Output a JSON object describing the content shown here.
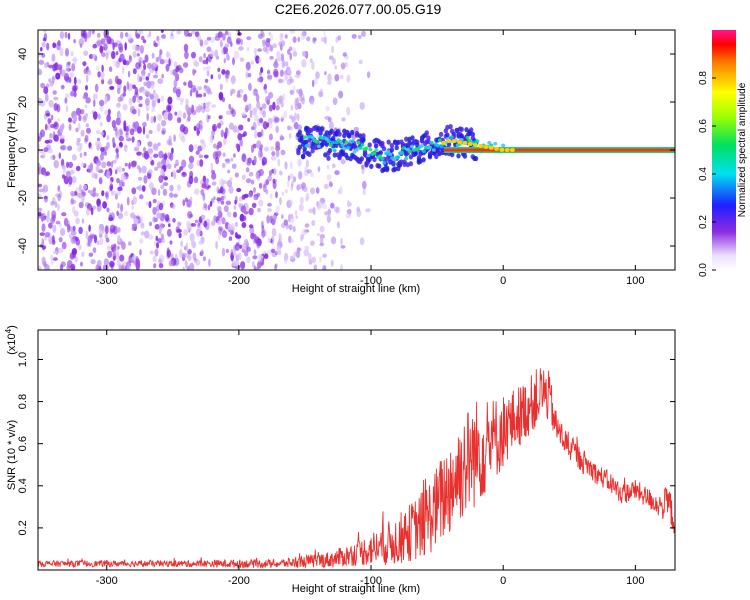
{
  "title": "C2E6.2026.077.00.05.G19",
  "chart_data": [
    {
      "type": "heatmap",
      "name": "spectrogram",
      "xlabel": "Height of straight line (km)",
      "ylabel": "Frequency (Hz)",
      "xlim": [
        -352,
        130
      ],
      "ylim": [
        -50,
        50
      ],
      "xticks": [
        -300,
        -200,
        -100,
        0,
        100
      ],
      "yticks": [
        -40,
        -20,
        0,
        20,
        40
      ],
      "colorbar": {
        "label": "Normalized spectral amplitude",
        "range": [
          0.0,
          1.0
        ],
        "ticks": [
          0.0,
          0.2,
          0.4,
          0.6,
          0.8
        ]
      },
      "signal_track": {
        "x": [
          -150,
          -140,
          -130,
          -120,
          -110,
          -100,
          -90,
          -80,
          -70,
          -60,
          -50,
          -40,
          -30,
          -20,
          -10,
          0,
          10,
          30,
          60,
          90,
          120,
          130
        ],
        "frequency": [
          3,
          4,
          2,
          3,
          1,
          -1,
          -3,
          -2,
          -1,
          1,
          2,
          4,
          3,
          2,
          1,
          0,
          0,
          0,
          0,
          0,
          0,
          0
        ],
        "amplitude": [
          0.2,
          0.3,
          0.35,
          0.4,
          0.45,
          0.45,
          0.4,
          0.5,
          0.55,
          0.5,
          0.45,
          0.55,
          0.7,
          0.75,
          0.8,
          0.85,
          0.9,
          0.9,
          0.9,
          0.9,
          0.9,
          0.9
        ]
      },
      "noise_extent": {
        "dense_below": -170,
        "fades_until": -100
      }
    },
    {
      "type": "line",
      "name": "snr",
      "xlabel": "Height of straight line (km)",
      "ylabel": "SNR (10 * v/v)",
      "y_multiplier": "(x10",
      "y_multiplier_exponent": "4",
      "y_multiplier_close": ")",
      "xlim": [
        -352,
        130
      ],
      "ylim": [
        0.0,
        1.14
      ],
      "xticks": [
        -300,
        -200,
        -100,
        0,
        100
      ],
      "yticks": [
        0.2,
        0.4,
        0.6,
        0.8,
        1.0
      ],
      "color": "#e8302e",
      "envelope": {
        "x": [
          -352,
          -300,
          -250,
          -200,
          -170,
          -150,
          -130,
          -110,
          -100,
          -90,
          -80,
          -70,
          -60,
          -50,
          -40,
          -30,
          -20,
          -10,
          0,
          10,
          20,
          30,
          35,
          40,
          50,
          60,
          70,
          80,
          90,
          100,
          110,
          120,
          125,
          130
        ],
        "mean": [
          0.03,
          0.03,
          0.03,
          0.03,
          0.03,
          0.04,
          0.05,
          0.08,
          0.1,
          0.12,
          0.14,
          0.18,
          0.22,
          0.3,
          0.4,
          0.5,
          0.56,
          0.6,
          0.66,
          0.72,
          0.78,
          0.85,
          0.82,
          0.68,
          0.58,
          0.52,
          0.46,
          0.42,
          0.36,
          0.38,
          0.34,
          0.3,
          0.32,
          0.22
        ],
        "spread": [
          0.015,
          0.015,
          0.015,
          0.02,
          0.02,
          0.03,
          0.04,
          0.06,
          0.08,
          0.1,
          0.12,
          0.14,
          0.17,
          0.2,
          0.24,
          0.26,
          0.26,
          0.22,
          0.18,
          0.15,
          0.14,
          0.14,
          0.12,
          0.08,
          0.06,
          0.06,
          0.05,
          0.05,
          0.05,
          0.05,
          0.05,
          0.06,
          0.1,
          0.06
        ]
      }
    }
  ]
}
